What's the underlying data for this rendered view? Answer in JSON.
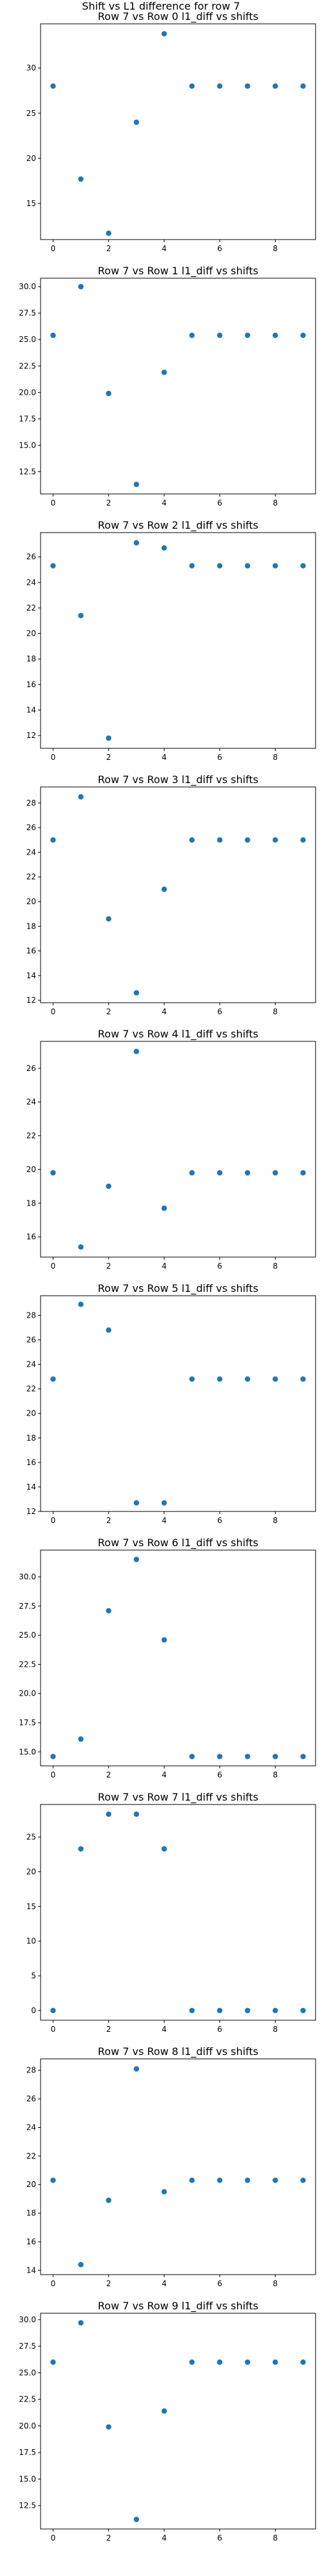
{
  "figure_title": "Shift vs L1 difference for row 7",
  "colors": {
    "marker": "#1f77b4",
    "axes": "#000000",
    "background": "#ffffff"
  },
  "chart_data": [
    {
      "type": "scatter",
      "title": "Row 7 vs Row 0 l1_diff vs shifts",
      "xlabel": "",
      "ylabel": "",
      "x": [
        0,
        1,
        2,
        3,
        4,
        5,
        6,
        7,
        8,
        9
      ],
      "y": [
        28.0,
        17.7,
        11.7,
        24.0,
        33.8,
        28.0,
        28.0,
        28.0,
        28.0,
        28.0
      ],
      "xlim": [
        -0.45,
        9.45
      ],
      "ylim": [
        11.0,
        34.9
      ],
      "xticks": [
        0,
        2,
        4,
        6,
        8
      ],
      "xtick_labels": [
        "0",
        "2",
        "4",
        "6",
        "8"
      ],
      "yticks": [
        15,
        20,
        25,
        30
      ],
      "ytick_labels": [
        "15",
        "20",
        "25",
        "30"
      ],
      "grid": false
    },
    {
      "type": "scatter",
      "title": "Row 7 vs Row 1 l1_diff vs shifts",
      "xlabel": "",
      "ylabel": "",
      "x": [
        0,
        1,
        2,
        3,
        4,
        5,
        6,
        7,
        8,
        9
      ],
      "y": [
        25.4,
        30.0,
        19.9,
        11.3,
        21.9,
        25.4,
        25.4,
        25.4,
        25.4,
        25.4
      ],
      "xlim": [
        -0.45,
        9.45
      ],
      "ylim": [
        10.4,
        30.8
      ],
      "xticks": [
        0,
        2,
        4,
        6,
        8
      ],
      "xtick_labels": [
        "0",
        "2",
        "4",
        "6",
        "8"
      ],
      "yticks": [
        12.5,
        15.0,
        17.5,
        20.0,
        22.5,
        25.0,
        27.5,
        30.0
      ],
      "ytick_labels": [
        "12.5",
        "15.0",
        "17.5",
        "20.0",
        "22.5",
        "25.0",
        "27.5",
        "30.0"
      ],
      "grid": false
    },
    {
      "type": "scatter",
      "title": "Row 7 vs Row 2 l1_diff vs shifts",
      "xlabel": "",
      "ylabel": "",
      "x": [
        0,
        1,
        2,
        3,
        4,
        5,
        6,
        7,
        8,
        9
      ],
      "y": [
        25.3,
        21.4,
        11.8,
        27.1,
        26.7,
        25.3,
        25.3,
        25.3,
        25.3,
        25.3
      ],
      "xlim": [
        -0.45,
        9.45
      ],
      "ylim": [
        11.0,
        27.9
      ],
      "xticks": [
        0,
        2,
        4,
        6,
        8
      ],
      "xtick_labels": [
        "0",
        "2",
        "4",
        "6",
        "8"
      ],
      "yticks": [
        12,
        14,
        16,
        18,
        20,
        22,
        24,
        26
      ],
      "ytick_labels": [
        "12",
        "14",
        "16",
        "18",
        "20",
        "22",
        "24",
        "26"
      ],
      "grid": false
    },
    {
      "type": "scatter",
      "title": "Row 7 vs Row 3 l1_diff vs shifts",
      "xlabel": "",
      "ylabel": "",
      "x": [
        0,
        1,
        2,
        3,
        4,
        5,
        6,
        7,
        8,
        9
      ],
      "y": [
        25.0,
        28.5,
        18.6,
        12.6,
        21.0,
        25.0,
        25.0,
        25.0,
        25.0,
        25.0
      ],
      "xlim": [
        -0.45,
        9.45
      ],
      "ylim": [
        11.8,
        29.3
      ],
      "xticks": [
        0,
        2,
        4,
        6,
        8
      ],
      "xtick_labels": [
        "0",
        "2",
        "4",
        "6",
        "8"
      ],
      "yticks": [
        12,
        14,
        16,
        18,
        20,
        22,
        24,
        26,
        28
      ],
      "ytick_labels": [
        "12",
        "14",
        "16",
        "18",
        "20",
        "22",
        "24",
        "26",
        "28"
      ],
      "grid": false
    },
    {
      "type": "scatter",
      "title": "Row 7 vs Row 4 l1_diff vs shifts",
      "xlabel": "",
      "ylabel": "",
      "x": [
        0,
        1,
        2,
        3,
        4,
        5,
        6,
        7,
        8,
        9
      ],
      "y": [
        19.8,
        15.4,
        19.0,
        27.0,
        17.7,
        19.8,
        19.8,
        19.8,
        19.8,
        19.8
      ],
      "xlim": [
        -0.45,
        9.45
      ],
      "ylim": [
        14.8,
        27.6
      ],
      "xticks": [
        0,
        2,
        4,
        6,
        8
      ],
      "xtick_labels": [
        "0",
        "2",
        "4",
        "6",
        "8"
      ],
      "yticks": [
        16,
        18,
        20,
        22,
        24,
        26
      ],
      "ytick_labels": [
        "16",
        "18",
        "20",
        "22",
        "24",
        "26"
      ],
      "grid": false
    },
    {
      "type": "scatter",
      "title": "Row 7 vs Row 5 l1_diff vs shifts",
      "xlabel": "",
      "ylabel": "",
      "x": [
        0,
        1,
        2,
        3,
        4,
        5,
        6,
        7,
        8,
        9
      ],
      "y": [
        22.8,
        28.9,
        26.8,
        12.7,
        12.7,
        22.8,
        22.8,
        22.8,
        22.8,
        22.8
      ],
      "xlim": [
        -0.45,
        9.45
      ],
      "ylim": [
        12.0,
        29.6
      ],
      "xticks": [
        0,
        2,
        4,
        6,
        8
      ],
      "xtick_labels": [
        "0",
        "2",
        "4",
        "6",
        "8"
      ],
      "yticks": [
        12,
        14,
        16,
        18,
        20,
        22,
        24,
        26,
        28
      ],
      "ytick_labels": [
        "12",
        "14",
        "16",
        "18",
        "20",
        "22",
        "24",
        "26",
        "28"
      ],
      "grid": false
    },
    {
      "type": "scatter",
      "title": "Row 7 vs Row 6 l1_diff vs shifts",
      "xlabel": "",
      "ylabel": "",
      "x": [
        0,
        1,
        2,
        3,
        4,
        5,
        6,
        7,
        8,
        9
      ],
      "y": [
        14.6,
        16.1,
        27.1,
        31.5,
        24.6,
        14.6,
        14.6,
        14.6,
        14.6,
        14.6
      ],
      "xlim": [
        -0.45,
        9.45
      ],
      "ylim": [
        13.8,
        32.3
      ],
      "xticks": [
        0,
        2,
        4,
        6,
        8
      ],
      "xtick_labels": [
        "0",
        "2",
        "4",
        "6",
        "8"
      ],
      "yticks": [
        15.0,
        17.5,
        20.0,
        22.5,
        25.0,
        27.5,
        30.0
      ],
      "ytick_labels": [
        "15.0",
        "17.5",
        "20.0",
        "22.5",
        "25.0",
        "27.5",
        "30.0"
      ],
      "grid": false
    },
    {
      "type": "scatter",
      "title": "Row 7 vs Row 7 l1_diff vs shifts",
      "xlabel": "",
      "ylabel": "",
      "x": [
        0,
        1,
        2,
        3,
        4,
        5,
        6,
        7,
        8,
        9
      ],
      "y": [
        0.0,
        23.3,
        28.3,
        28.3,
        23.3,
        0.0,
        0.0,
        0.0,
        0.0,
        0.0
      ],
      "xlim": [
        -0.45,
        9.45
      ],
      "ylim": [
        -1.4,
        29.7
      ],
      "xticks": [
        0,
        2,
        4,
        6,
        8
      ],
      "xtick_labels": [
        "0",
        "2",
        "4",
        "6",
        "8"
      ],
      "yticks": [
        0,
        5,
        10,
        15,
        20,
        25
      ],
      "ytick_labels": [
        "0",
        "5",
        "10",
        "15",
        "20",
        "25"
      ],
      "grid": false
    },
    {
      "type": "scatter",
      "title": "Row 7 vs Row 8 l1_diff vs shifts",
      "xlabel": "",
      "ylabel": "",
      "x": [
        0,
        1,
        2,
        3,
        4,
        5,
        6,
        7,
        8,
        9
      ],
      "y": [
        20.3,
        14.4,
        18.9,
        28.1,
        19.5,
        20.3,
        20.3,
        20.3,
        20.3,
        20.3
      ],
      "xlim": [
        -0.45,
        9.45
      ],
      "ylim": [
        13.7,
        28.8
      ],
      "xticks": [
        0,
        2,
        4,
        6,
        8
      ],
      "xtick_labels": [
        "0",
        "2",
        "4",
        "6",
        "8"
      ],
      "yticks": [
        14,
        16,
        18,
        20,
        22,
        24,
        26,
        28
      ],
      "ytick_labels": [
        "14",
        "16",
        "18",
        "20",
        "22",
        "24",
        "26",
        "28"
      ],
      "grid": false
    },
    {
      "type": "scatter",
      "title": "Row 7 vs Row 9 l1_diff vs shifts",
      "xlabel": "",
      "ylabel": "",
      "x": [
        0,
        1,
        2,
        3,
        4,
        5,
        6,
        7,
        8,
        9
      ],
      "y": [
        26.0,
        29.7,
        19.9,
        11.2,
        21.4,
        26.0,
        26.0,
        26.0,
        26.0,
        26.0
      ],
      "xlim": [
        -0.45,
        9.45
      ],
      "ylim": [
        10.3,
        30.6
      ],
      "xticks": [
        0,
        2,
        4,
        6,
        8
      ],
      "xtick_labels": [
        "0",
        "2",
        "4",
        "6",
        "8"
      ],
      "yticks": [
        12.5,
        15.0,
        17.5,
        20.0,
        22.5,
        25.0,
        27.5,
        30.0
      ],
      "ytick_labels": [
        "12.5",
        "15.0",
        "17.5",
        "20.0",
        "22.5",
        "25.0",
        "27.5",
        "30.0"
      ],
      "grid": false
    }
  ]
}
